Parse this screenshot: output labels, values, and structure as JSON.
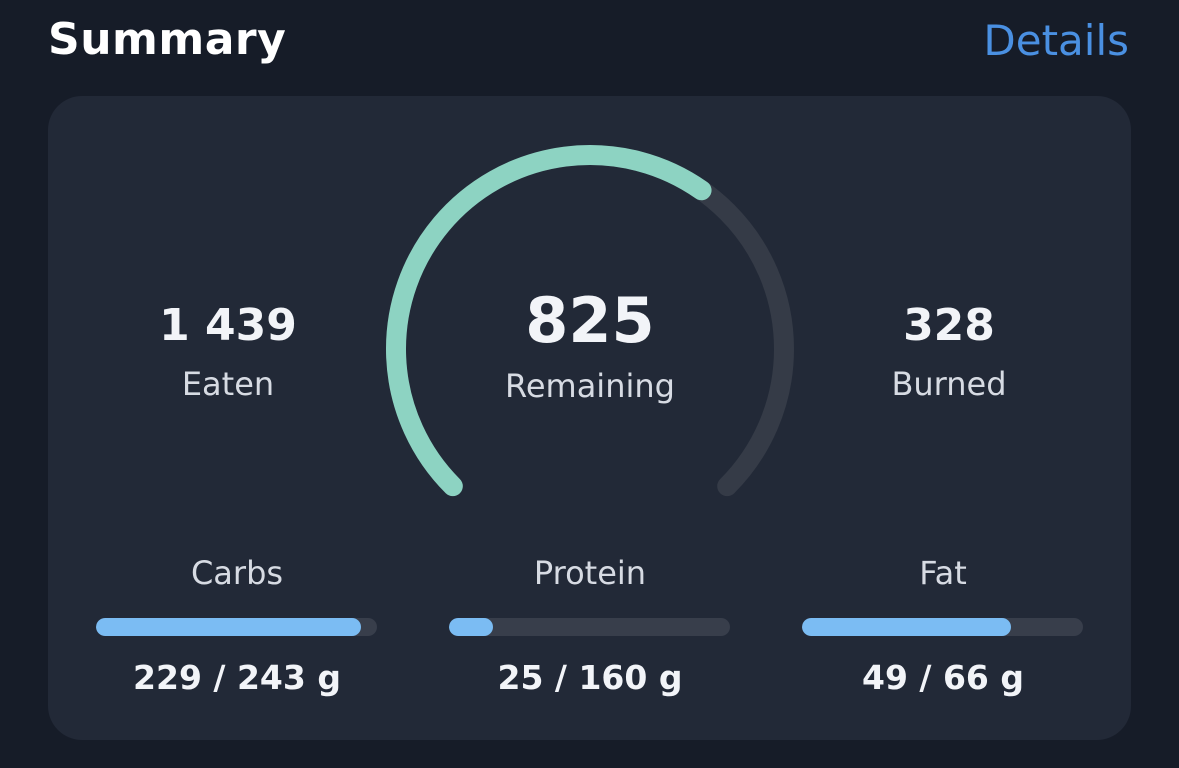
{
  "header": {
    "title": "Summary",
    "details_label": "Details"
  },
  "summary": {
    "eaten": {
      "value": "1 439",
      "label": "Eaten"
    },
    "remaining": {
      "value": "825",
      "label": "Remaining",
      "progress": 0.63
    },
    "burned": {
      "value": "328",
      "label": "Burned"
    }
  },
  "macros": [
    {
      "label": "Carbs",
      "value_text": "229 / 243 g",
      "consumed": 229,
      "goal": 243
    },
    {
      "label": "Protein",
      "value_text": "25 / 160 g",
      "consumed": 25,
      "goal": 160
    },
    {
      "label": "Fat",
      "value_text": "49 / 66 g",
      "consumed": 49,
      "goal": 66
    }
  ],
  "colors": {
    "background": "#161c28",
    "card": "#222937",
    "accent_link": "#4a90e2",
    "gauge_progress": "#8dd3c2",
    "gauge_track": "#353b47",
    "bar_fill": "#7bbcf3",
    "bar_track": "#383e4b"
  }
}
